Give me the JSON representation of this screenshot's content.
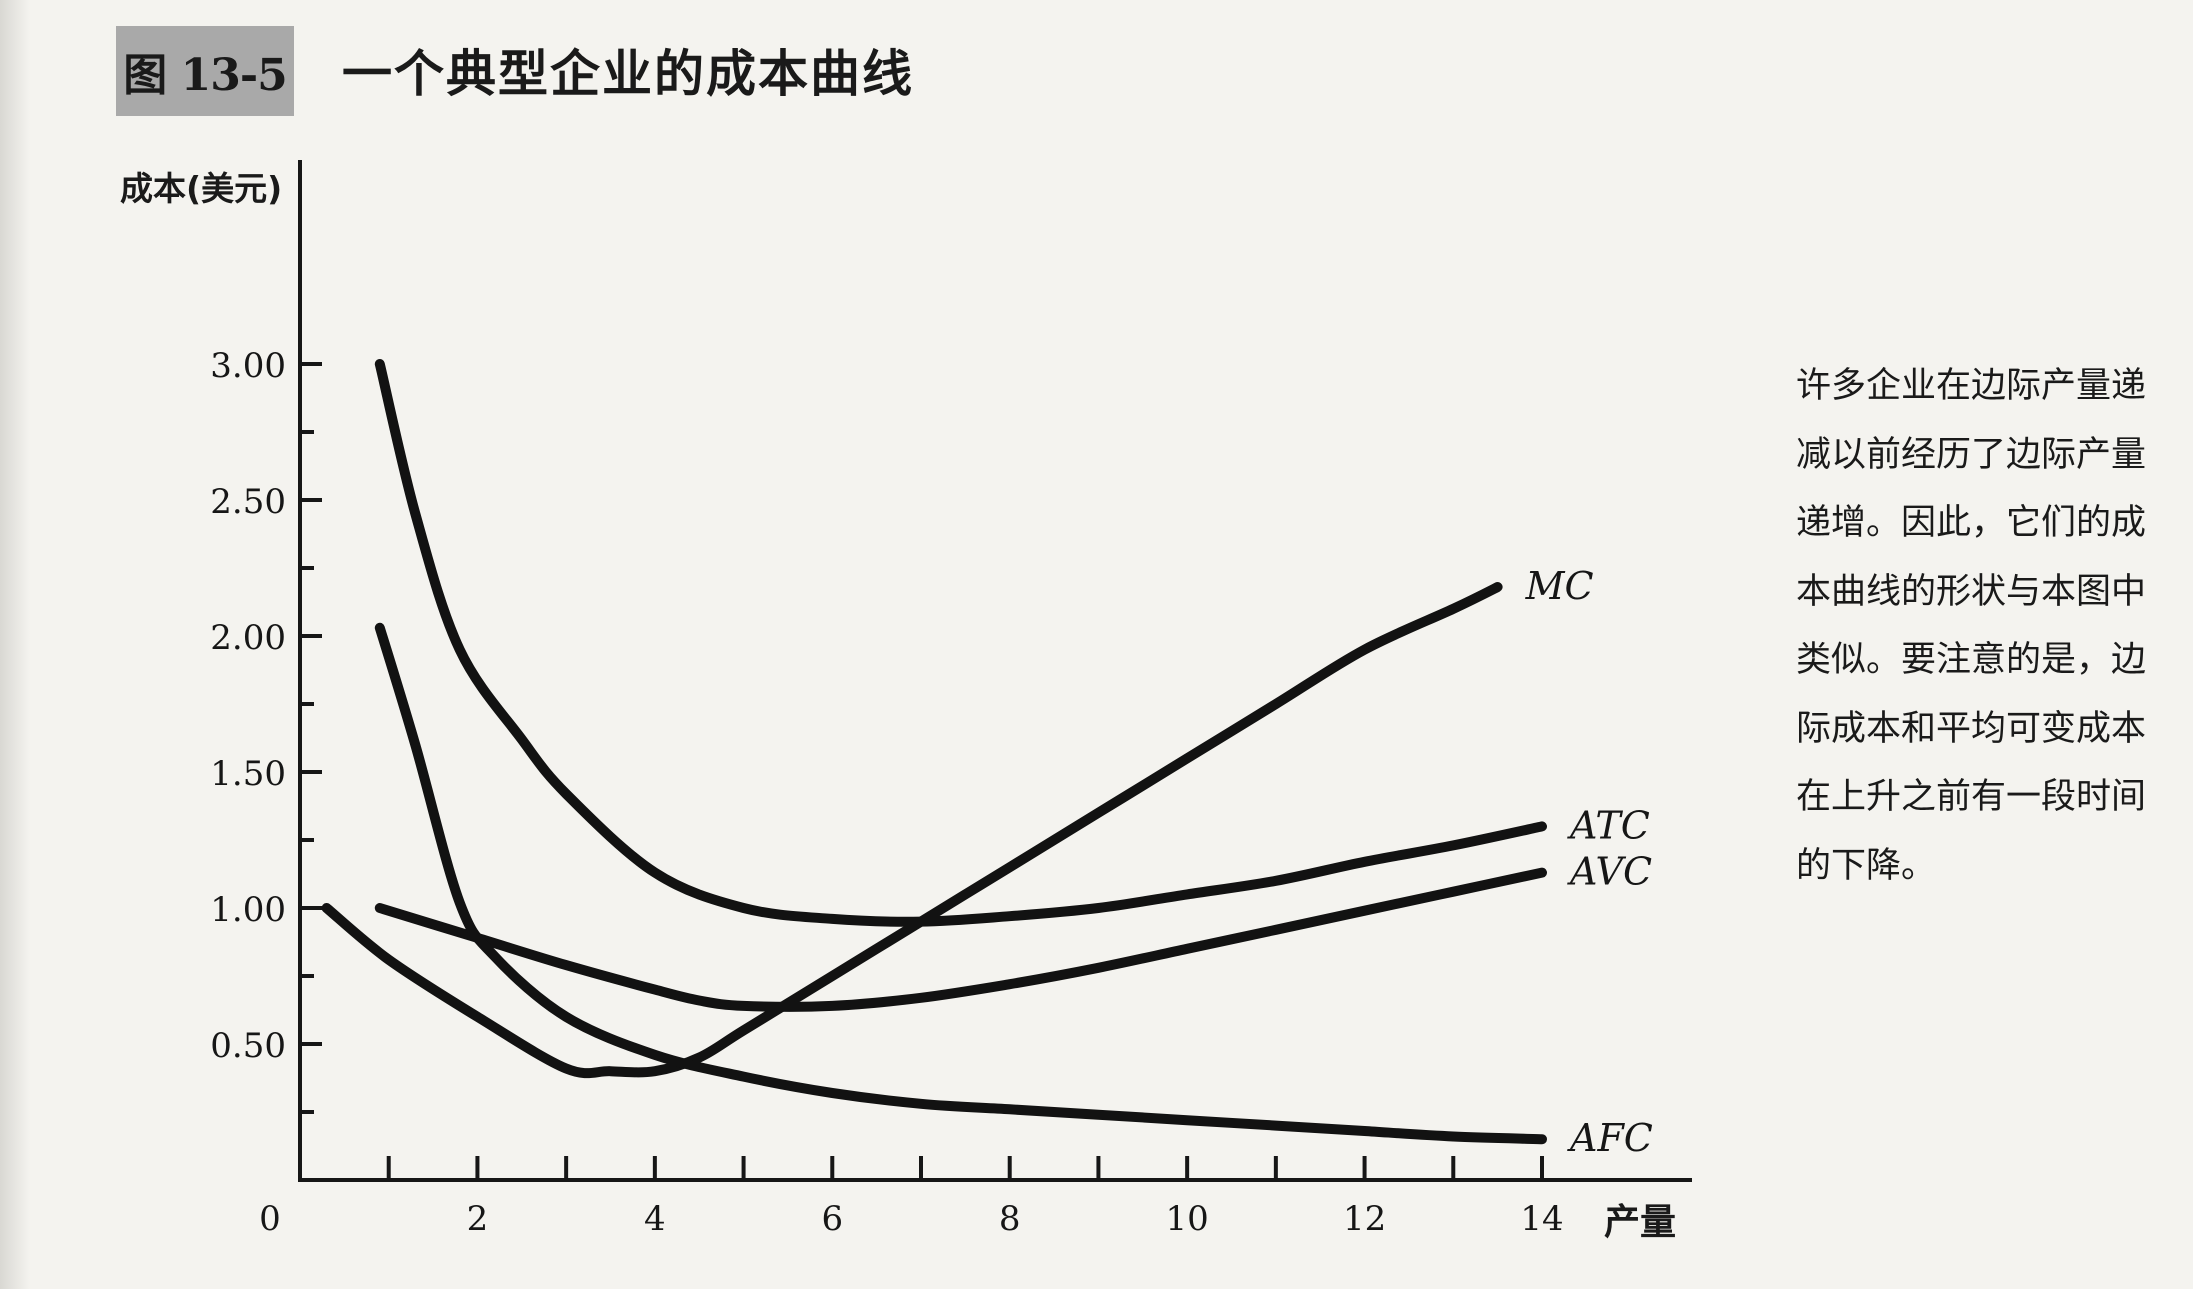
{
  "figure": {
    "number": "图 13-5",
    "title": "一个典型企业的成本曲线"
  },
  "caption_lines": [
    "许多企业在边际产量递",
    "减以前经历了边际产量",
    "递增。因此，它们的成",
    "本曲线的形状与本图中",
    "类似。要注意的是，边",
    "际成本和平均可变成本",
    "在上升之前有一段时间",
    "的下降。"
  ],
  "chart_data": {
    "type": "line",
    "title": "",
    "xlabel": "产量",
    "ylabel": "成本(美元)",
    "xlim": [
      0,
      14.3
    ],
    "ylim": [
      0,
      3.6
    ],
    "x_ticks": [
      0,
      2,
      4,
      6,
      8,
      10,
      12,
      14
    ],
    "x_minor_ticks": [
      1,
      3,
      5,
      7,
      9,
      11,
      13
    ],
    "y_ticks": [
      0.5,
      1.0,
      1.5,
      2.0,
      2.5,
      3.0
    ],
    "y_tick_labels": [
      "0.50",
      "1.00",
      "1.50",
      "2.00",
      "2.50",
      "3.00"
    ],
    "y_minor_ticks": [
      0.25,
      0.75,
      1.25,
      1.75,
      2.25,
      2.75
    ],
    "grid": false,
    "legend": "none",
    "series": [
      {
        "name": "MC",
        "points": [
          [
            0.3,
            1.0
          ],
          [
            1.0,
            0.81
          ],
          [
            2.0,
            0.6
          ],
          [
            3.0,
            0.41
          ],
          [
            3.5,
            0.4
          ],
          [
            4.0,
            0.4
          ],
          [
            4.5,
            0.45
          ],
          [
            5.0,
            0.55
          ],
          [
            6.0,
            0.75
          ],
          [
            7.0,
            0.95
          ],
          [
            8.0,
            1.15
          ],
          [
            9.0,
            1.35
          ],
          [
            10.0,
            1.55
          ],
          [
            11.0,
            1.75
          ],
          [
            12.0,
            1.95
          ],
          [
            13.0,
            2.1
          ],
          [
            13.5,
            2.18
          ]
        ]
      },
      {
        "name": "ATC",
        "points": [
          [
            0.9,
            3.0
          ],
          [
            1.3,
            2.45
          ],
          [
            1.8,
            1.95
          ],
          [
            2.5,
            1.62
          ],
          [
            3.0,
            1.42
          ],
          [
            4.0,
            1.13
          ],
          [
            5.0,
            1.0
          ],
          [
            6.0,
            0.96
          ],
          [
            7.0,
            0.95
          ],
          [
            8.0,
            0.97
          ],
          [
            9.0,
            1.0
          ],
          [
            10.0,
            1.05
          ],
          [
            11.0,
            1.1
          ],
          [
            12.0,
            1.17
          ],
          [
            13.0,
            1.23
          ],
          [
            14.0,
            1.3
          ]
        ]
      },
      {
        "name": "AVC",
        "points": [
          [
            0.9,
            1.0
          ],
          [
            2.0,
            0.89
          ],
          [
            3.0,
            0.79
          ],
          [
            4.0,
            0.7
          ],
          [
            4.5,
            0.66
          ],
          [
            5.0,
            0.64
          ],
          [
            6.0,
            0.64
          ],
          [
            7.0,
            0.67
          ],
          [
            8.0,
            0.72
          ],
          [
            9.0,
            0.78
          ],
          [
            10.0,
            0.85
          ],
          [
            11.0,
            0.92
          ],
          [
            12.0,
            0.99
          ],
          [
            13.0,
            1.06
          ],
          [
            14.0,
            1.13
          ]
        ]
      },
      {
        "name": "AFC",
        "points": [
          [
            0.9,
            2.03
          ],
          [
            1.3,
            1.6
          ],
          [
            1.8,
            1.02
          ],
          [
            2.2,
            0.82
          ],
          [
            3.0,
            0.6
          ],
          [
            4.0,
            0.46
          ],
          [
            5.0,
            0.38
          ],
          [
            6.0,
            0.32
          ],
          [
            7.0,
            0.28
          ],
          [
            8.0,
            0.26
          ],
          [
            9.0,
            0.24
          ],
          [
            10.0,
            0.22
          ],
          [
            11.0,
            0.2
          ],
          [
            12.0,
            0.18
          ],
          [
            13.0,
            0.16
          ],
          [
            14.0,
            0.15
          ]
        ]
      }
    ]
  },
  "colors": {
    "curve": "#121212",
    "axis": "#161616",
    "badge": "#a9a9a9"
  }
}
